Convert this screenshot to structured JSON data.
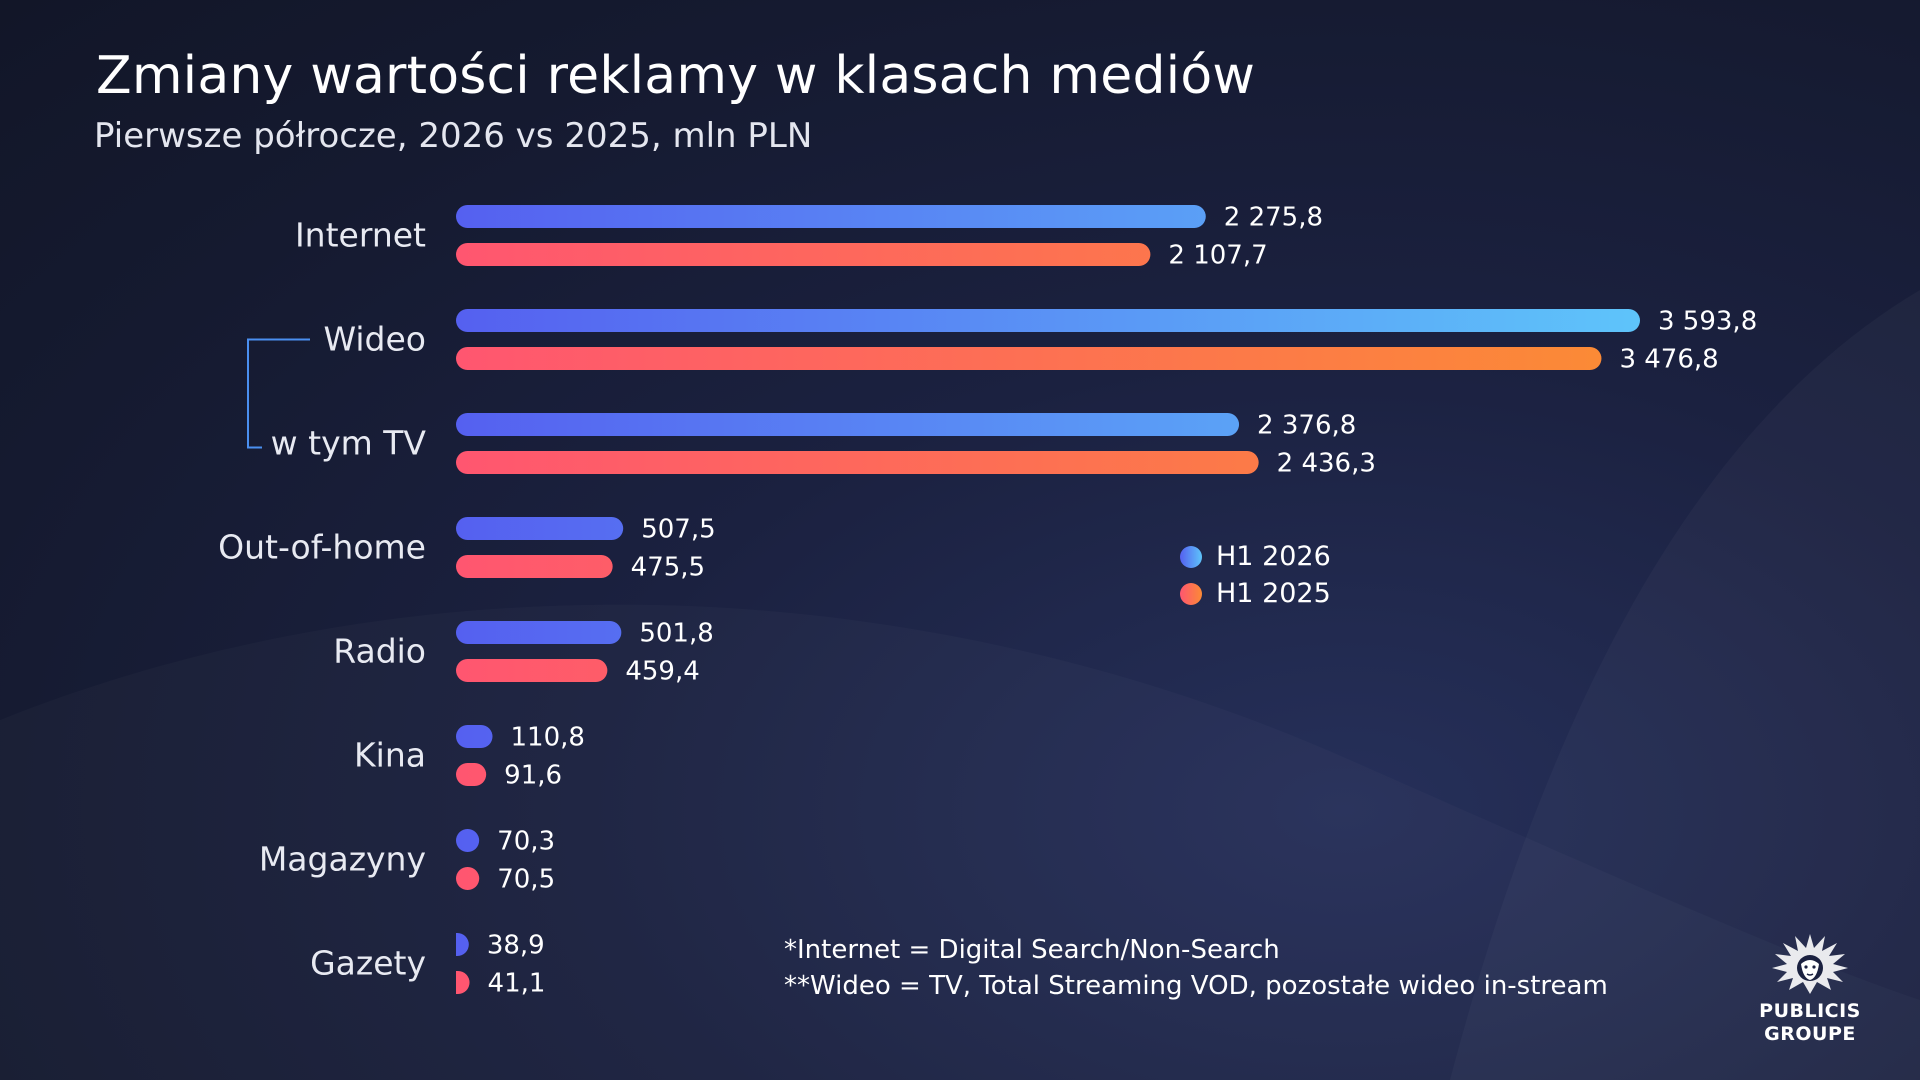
{
  "title": "Zmiany wartości reklamy w klasach mediów",
  "subtitle": "Pierwsze półrocze, 2026 vs 2025, mln PLN",
  "colors": {
    "h1_2026_start": "#5560f0",
    "h1_2026_end": "#5ec4fa",
    "h1_2025_start": "#ff5670",
    "h1_2025_end": "#fb8a36",
    "bracket": "#4a8ff0"
  },
  "legend": [
    {
      "label": "H1 2026"
    },
    {
      "label": "H1 2025"
    }
  ],
  "chart_data": {
    "type": "bar",
    "orientation": "horizontal",
    "categories": [
      "Internet",
      "Wideo",
      "w tym TV",
      "Out-of-home",
      "Radio",
      "Kina",
      "Magazyny",
      "Gazety"
    ],
    "series": [
      {
        "name": "H1 2026",
        "values": [
          2275.8,
          3593.8,
          2376.8,
          507.5,
          501.8,
          110.8,
          70.3,
          38.9
        ],
        "labels": [
          "2 275,8",
          "3 593,8",
          "2 376,8",
          "507,5",
          "501,8",
          "110,8",
          "70,3",
          "38,9"
        ]
      },
      {
        "name": "H1 2025",
        "values": [
          2107.7,
          3476.8,
          2436.3,
          475.5,
          459.4,
          91.6,
          70.5,
          41.1
        ],
        "labels": [
          "2 107,7",
          "3 476,8",
          "2 436,3",
          "475,5",
          "459,4",
          "91,6",
          "70,5",
          "41,1"
        ]
      }
    ],
    "legend_position": "center-right",
    "grid": false,
    "title": "Zmiany wartości reklamy w klasach mediów",
    "xlabel": "",
    "ylabel": ""
  },
  "footnotes": [
    "*Internet = Digital Search/Non-Search",
    "**Wideo = TV, Total Streaming VOD, pozostałe wideo in-stream"
  ],
  "logo": {
    "line1": "PUBLICIS",
    "line2": "GROUPE"
  }
}
